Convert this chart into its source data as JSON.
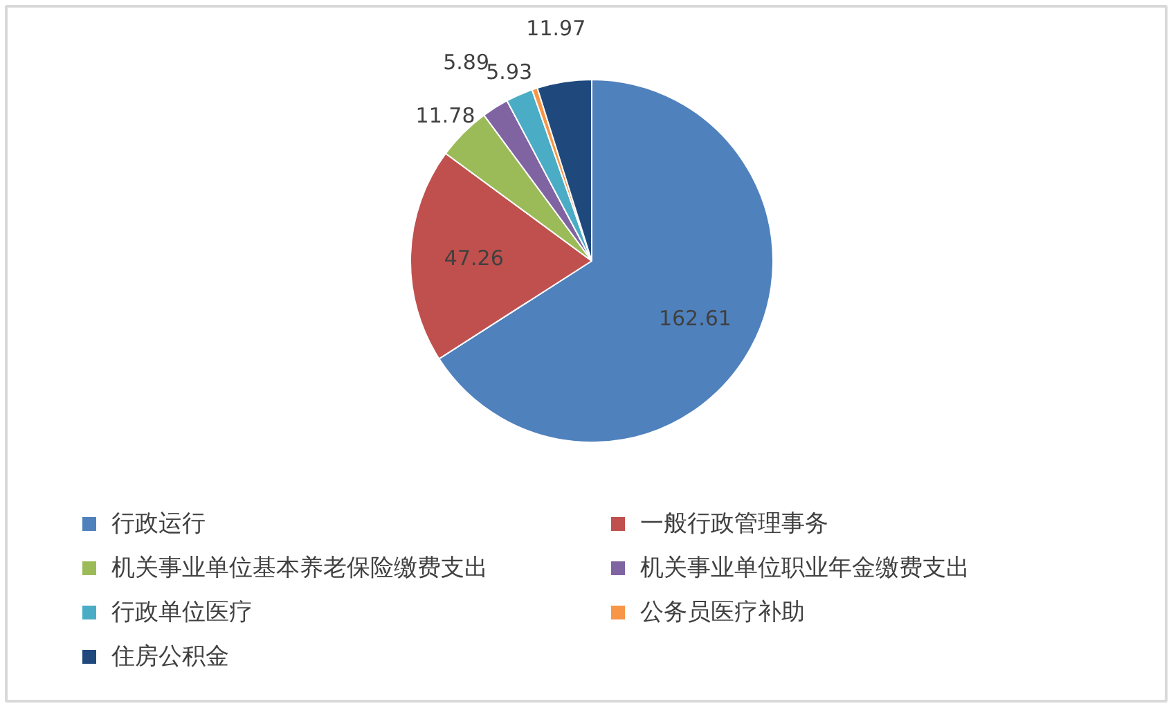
{
  "chart_data": {
    "type": "pie",
    "categories": [
      "行政运行",
      "一般行政管理事务",
      "机关事业单位基本养老保险缴费支出",
      "机关事业单位职业年金缴费支出",
      "行政单位医疗",
      "公务员医疗补助",
      "住房公积金"
    ],
    "values": [
      162.61,
      47.26,
      11.78,
      5.89,
      5.93,
      1.2,
      11.97
    ],
    "colors": [
      "#4f81bd",
      "#c0504d",
      "#9bbb59",
      "#8064a2",
      "#4bacc6",
      "#f79646",
      "#1f497d"
    ],
    "value_labels": [
      "162.61",
      "47.26",
      "11.78",
      "5.89",
      "5.93",
      null,
      "11.97"
    ],
    "legend": "bottom"
  }
}
